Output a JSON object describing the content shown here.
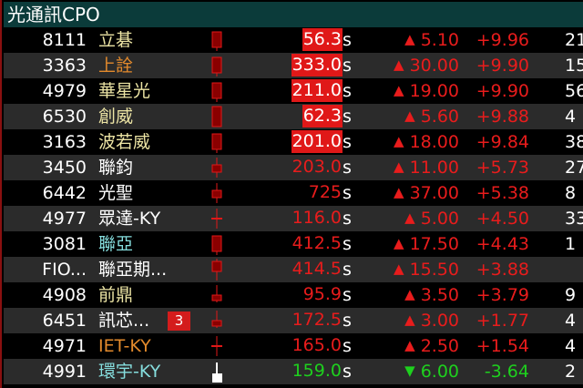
{
  "header": {
    "title": "光通訊CPO"
  },
  "colors": {
    "up": "#e81c1c",
    "down": "#1ed01e",
    "header_bg": "#0b3b3a",
    "limit_bg": "#e01818"
  },
  "rows": [
    {
      "code": "8111",
      "name": "立碁",
      "name_color": "#ece4a4",
      "candle": "tall",
      "price": "56.3",
      "limit": true,
      "dir": "up",
      "change": "5.10",
      "pct": "+9.96",
      "vol": "21"
    },
    {
      "code": "3363",
      "name": "上詮",
      "name_color": "#e38a2c",
      "candle": "tall",
      "price": "333.0",
      "limit": true,
      "dir": "up",
      "change": "30.00",
      "pct": "+9.90",
      "vol": "15"
    },
    {
      "code": "4979",
      "name": "華星光",
      "name_color": "#ece4a4",
      "candle": "tall",
      "price": "211.0",
      "limit": true,
      "dir": "up",
      "change": "19.00",
      "pct": "+9.90",
      "vol": "56"
    },
    {
      "code": "6530",
      "name": "創威",
      "name_color": "#ece4a4",
      "candle": "full",
      "price": "62.3",
      "limit": true,
      "dir": "up",
      "change": "5.60",
      "pct": "+9.88",
      "vol": "4"
    },
    {
      "code": "3163",
      "name": "波若威",
      "name_color": "#ece4a4",
      "candle": "tall",
      "price": "201.0",
      "limit": true,
      "dir": "up",
      "change": "18.00",
      "pct": "+9.84",
      "vol": "38"
    },
    {
      "code": "3450",
      "name": "聯鈞",
      "name_color": "#ffffff",
      "candle": "small",
      "price": "203.0",
      "limit": false,
      "dir": "up",
      "change": "11.00",
      "pct": "+5.73",
      "vol": "27"
    },
    {
      "code": "6442",
      "name": "光聖",
      "name_color": "#ffffff",
      "candle": "small",
      "price": "725",
      "limit": false,
      "dir": "up",
      "change": "37.00",
      "pct": "+5.38",
      "vol": "8"
    },
    {
      "code": "4977",
      "name": "眾達-KY",
      "name_color": "#ffffff",
      "candle": "cross",
      "price": "116.0",
      "limit": false,
      "dir": "up",
      "change": "5.00",
      "pct": "+4.50",
      "vol": "33"
    },
    {
      "code": "3081",
      "name": "聯亞",
      "name_color": "#86dede",
      "candle": "tall",
      "price": "412.5",
      "limit": false,
      "dir": "up",
      "change": "17.50",
      "pct": "+4.43",
      "vol": "1"
    },
    {
      "code": "FIO...",
      "name": "聯亞期...",
      "name_color": "#ffffff",
      "candle": "mid",
      "price": "414.5",
      "limit": false,
      "dir": "up",
      "change": "15.50",
      "pct": "+3.88",
      "vol": ""
    },
    {
      "code": "4908",
      "name": "前鼎",
      "name_color": "#ece4a4",
      "candle": "low",
      "price": "95.9",
      "limit": false,
      "dir": "up",
      "change": "3.50",
      "pct": "+3.79",
      "vol": "9"
    },
    {
      "code": "6451",
      "name": "訊芯...",
      "name_color": "#ffffff",
      "badge": "3",
      "candle": "low",
      "price": "172.5",
      "limit": false,
      "dir": "up",
      "change": "3.00",
      "pct": "+1.77",
      "vol": "4"
    },
    {
      "code": "4971",
      "name": "IET-KY",
      "name_color": "#e38a2c",
      "candle": "cross",
      "price": "165.0",
      "limit": false,
      "dir": "up",
      "change": "2.50",
      "pct": "+1.54",
      "vol": "4"
    },
    {
      "code": "4991",
      "name": "環宇-KY",
      "name_color": "#86dede",
      "candle": "white",
      "price": "159.0",
      "limit": false,
      "dir": "down",
      "change": "6.00",
      "pct": "-3.64",
      "vol": "2"
    }
  ],
  "labels": {
    "s": "s",
    "up_arrow": "▲",
    "down_arrow": "▼"
  }
}
